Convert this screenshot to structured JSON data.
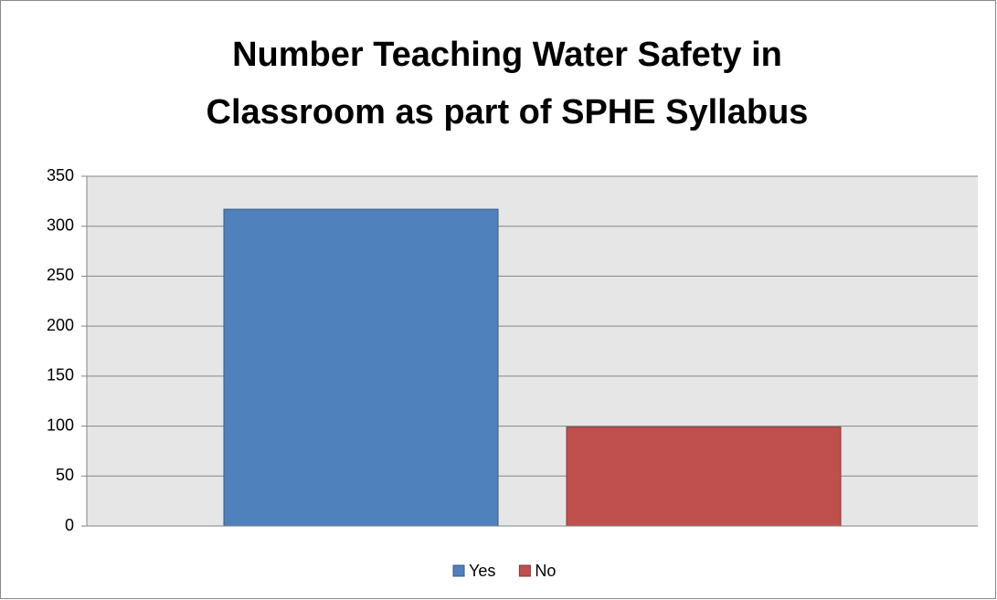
{
  "chart_data": {
    "type": "bar",
    "title": [
      "Number Teaching Water Safety in",
      "Classroom as part of SPHE Syllabus"
    ],
    "categories": [
      null
    ],
    "series": [
      {
        "name": "Yes",
        "color": "#4f81bd",
        "values": [
          317
        ]
      },
      {
        "name": "No",
        "color": "#c0504d",
        "values": [
          99
        ]
      }
    ],
    "ylim": [
      0,
      350
    ],
    "yticks": [
      0,
      50,
      100,
      150,
      200,
      250,
      300,
      350
    ],
    "grid": true,
    "legend": "bottom"
  }
}
